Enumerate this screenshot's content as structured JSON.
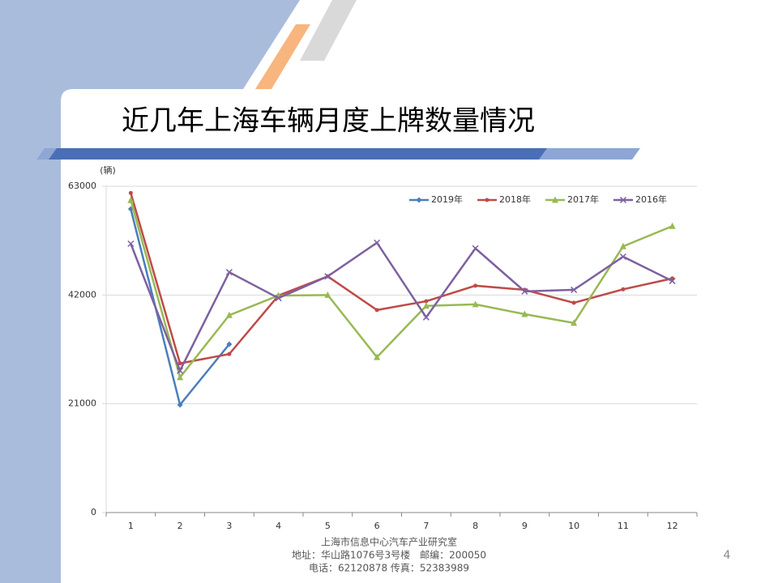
{
  "slide": {
    "title": "近几年上海车辆月度上牌数量情况",
    "page_number": "4",
    "footer": [
      "上海市信息中心汽车产业研究室",
      "地址：华山路1076号3号楼　邮编：200050",
      "电话：62120878  传真：52383989"
    ]
  },
  "chart_data": {
    "type": "line",
    "y_label": "(辆)",
    "categories": [
      "1",
      "2",
      "3",
      "4",
      "5",
      "6",
      "7",
      "8",
      "9",
      "10",
      "11",
      "12"
    ],
    "ylim": [
      0,
      63000
    ],
    "yticks": [
      0,
      21000,
      42000,
      63000
    ],
    "grid": true,
    "legend": "top-right",
    "series": [
      {
        "name": "2019年",
        "color": "#4a7ebb",
        "marker": "diamond",
        "values": [
          58600,
          20800,
          32500,
          null,
          null,
          null,
          null,
          null,
          null,
          null,
          null,
          null
        ]
      },
      {
        "name": "2018年",
        "color": "#be4b48",
        "marker": "circle",
        "values": [
          61700,
          28800,
          30600,
          41900,
          45600,
          39100,
          40800,
          43800,
          43000,
          40500,
          43100,
          45200
        ]
      },
      {
        "name": "2017年",
        "color": "#98b954",
        "marker": "triangle",
        "values": [
          60300,
          26100,
          38100,
          41900,
          42000,
          30000,
          39900,
          40200,
          38300,
          36600,
          51400,
          55300
        ]
      },
      {
        "name": "2016年",
        "color": "#7d60a0",
        "marker": "x",
        "values": [
          51900,
          27400,
          46400,
          41400,
          45600,
          52100,
          37700,
          51000,
          42700,
          43000,
          49400,
          44700
        ]
      }
    ]
  }
}
